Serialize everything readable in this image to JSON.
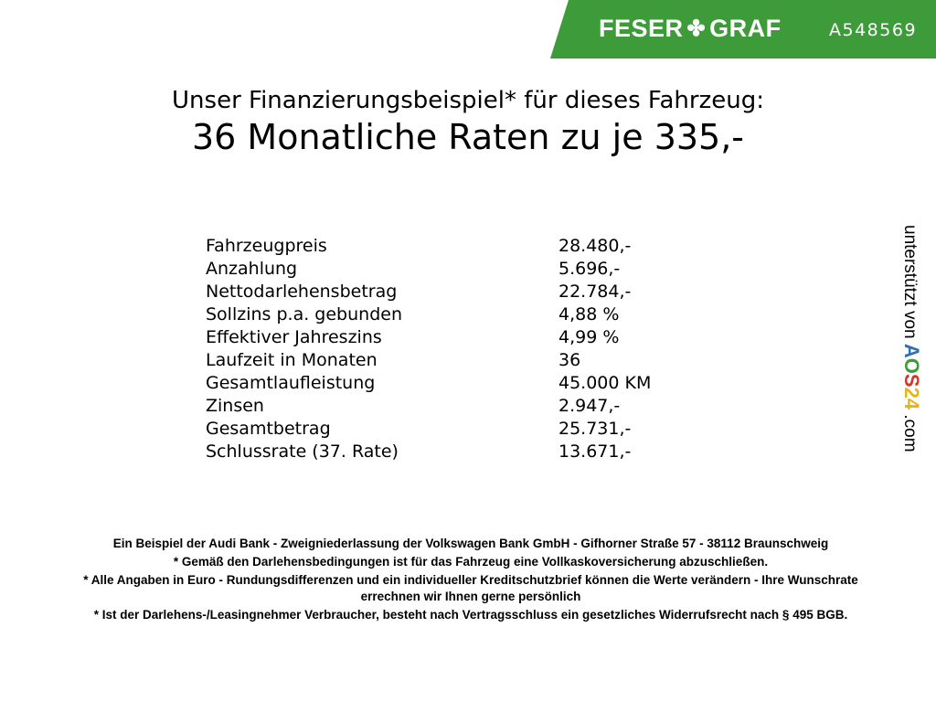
{
  "header": {
    "brand": "FESER GRAF",
    "vehicle_code": "A548569",
    "accent": "#3e9b3a"
  },
  "title": {
    "line1": "Unser Finanzierungsbeispiel* für dieses Fahrzeug:",
    "line2": "36 Monatliche Raten zu je 335,-"
  },
  "rows": [
    {
      "label": "Fahrzeugpreis",
      "value": "28.480,-"
    },
    {
      "label": "Anzahlung",
      "value": "5.696,-"
    },
    {
      "label": "Nettodarlehensbetrag",
      "value": "22.784,-"
    },
    {
      "label": "Sollzins p.a. gebunden",
      "value": "4,88 %"
    },
    {
      "label": "Effektiver Jahreszins",
      "value": "4,99 %"
    },
    {
      "label": "Laufzeit in Monaten",
      "value": "36"
    },
    {
      "label": "Gesamtlaufleistung",
      "value": "45.000 KM"
    },
    {
      "label": "Zinsen",
      "value": "2.947,-"
    },
    {
      "label": "Gesamtbetrag",
      "value": "25.731,-"
    },
    {
      "label": "Schlussrate (37. Rate)",
      "value": "13.671,-"
    }
  ],
  "side": {
    "text": "unterstützt von",
    "logo": "AOS24",
    ".com": ".com"
  },
  "footer": [
    "Ein Beispiel der Audi Bank - Zweigniederlassung der Volkswagen Bank GmbH - Gifhorner Straße 57 - 38112 Braunschweig",
    "* Gemäß den Darlehensbedingungen ist für das Fahrzeug eine Vollkaskoversicherung abzuschließen.",
    "* Alle Angaben in Euro - Rundungsdifferenzen und ein individueller Kreditschutzbrief können die Werte verändern - Ihre Wunschrate errechnen wir Ihnen gerne persönlich",
    "* Ist der Darlehens-/Leasingnehmer Verbraucher, besteht nach Vertragsschluss ein gesetzliches Widerrufsrecht nach § 495 BGB."
  ]
}
